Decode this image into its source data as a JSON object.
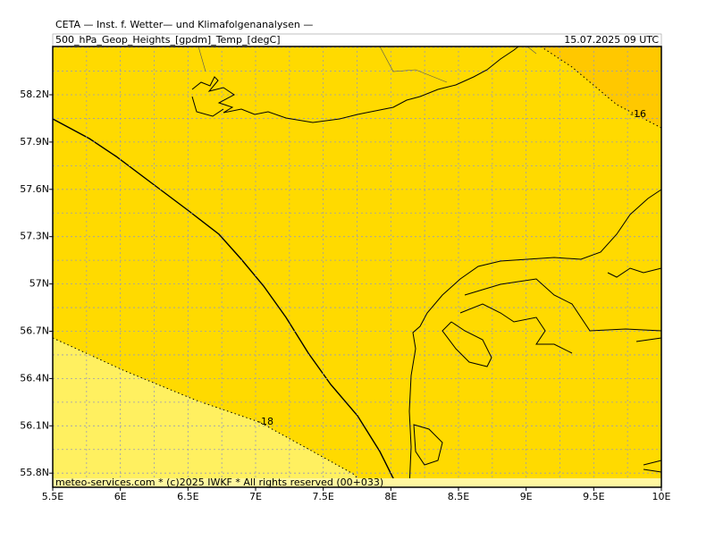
{
  "header": {
    "title": "CETA — Inst. f. Wetter— und Klimafolgenanalysen —",
    "field": "500_hPa_Geop_Heights_[gpdm]_Temp_[degC]",
    "valid_time": "15.07.2025 09 UTC"
  },
  "map": {
    "x_labels": [
      "5.5E",
      "6E",
      "6.5E",
      "7E",
      "7.5E",
      "8E",
      "8.5E",
      "9E",
      "9.5E",
      "10E"
    ],
    "y_labels": [
      "58.2N",
      "57.9N",
      "57.6N",
      "57.3N",
      "57N",
      "56.7N",
      "56.4N",
      "56.1N",
      "55.8N"
    ],
    "contour_labels": [
      "-16",
      "-18"
    ],
    "footer": "meteo-services.com * (c)2025 IWKF * All rights reserved (00+033)"
  }
}
